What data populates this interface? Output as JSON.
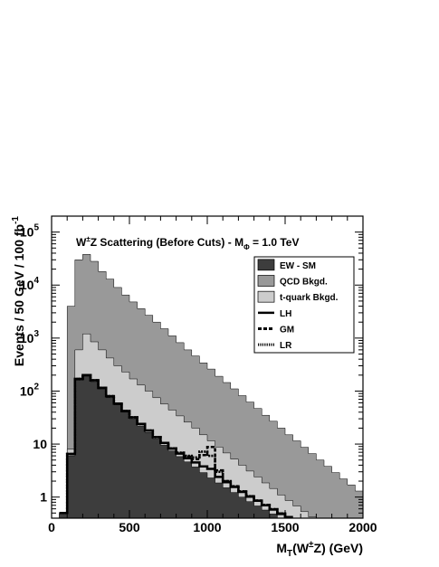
{
  "chart_data": {
    "type": "histogram",
    "title_parts": {
      "w_sup": "±",
      "before": "W",
      "after": "Z Scattering (Before Cuts) - M",
      "sub": "Φ",
      "tail": " = 1.0 TeV"
    },
    "xlabel_parts": {
      "m": "M",
      "sub": "T",
      "open": "(W",
      "sup": "±",
      "close": "Z) (GeV)"
    },
    "ylabel_text": "Events / 50 GeV / 100 fb",
    "ylabel_sup": "-1",
    "xlim": [
      0,
      2000
    ],
    "ylim": [
      0.4,
      200000
    ],
    "yscale": "log",
    "bin_width": 50,
    "x_ticks": [
      "0",
      "500",
      "1000",
      "1500",
      "2000"
    ],
    "y_ticks": [
      {
        "base": "1",
        "exp": "",
        "value": 1
      },
      {
        "base": "10",
        "exp": "",
        "value": 10
      },
      {
        "base": "10",
        "exp": "2",
        "value": 100
      },
      {
        "base": "10",
        "exp": "3",
        "value": 1000
      },
      {
        "base": "10",
        "exp": "4",
        "value": 10000
      },
      {
        "base": "10",
        "exp": "5",
        "value": 100000
      }
    ],
    "bins_x": [
      50,
      100,
      150,
      200,
      250,
      300,
      350,
      400,
      450,
      500,
      550,
      600,
      650,
      700,
      750,
      800,
      850,
      900,
      950,
      1000,
      1050,
      1100,
      1150,
      1200,
      1250,
      1300,
      1350,
      1400,
      1450,
      1500,
      1550,
      1600,
      1650,
      1700,
      1750,
      1800,
      1850,
      1900,
      1950
    ],
    "series": [
      {
        "name": "QCD Bkgd.",
        "style": "fill",
        "color": "#999999",
        "values": [
          0.5,
          4000,
          30000,
          38000,
          28000,
          18000,
          13000,
          9000,
          6500,
          4800,
          3600,
          2700,
          2000,
          1500,
          1100,
          820,
          600,
          460,
          340,
          260,
          190,
          145,
          110,
          82,
          62,
          47,
          35,
          27,
          20,
          15,
          11.5,
          8.7,
          6.6,
          5,
          3.8,
          2.9,
          2.2,
          1.7,
          1.3
        ]
      },
      {
        "name": "t-quark Bkgd.",
        "style": "fill",
        "color": "#cccccc",
        "values": [
          0.5,
          8,
          600,
          1200,
          850,
          600,
          420,
          300,
          230,
          170,
          130,
          100,
          75,
          57,
          44,
          34,
          26,
          20,
          15,
          11.5,
          8.8,
          6.8,
          5.2,
          4,
          3.1,
          2.4,
          1.85,
          1.45,
          1.1,
          0.86,
          0.68,
          0.53,
          0.42
        ]
      },
      {
        "name": "EW - SM",
        "style": "fill",
        "color": "#3d3d3d",
        "values": [
          0.5,
          6,
          160,
          190,
          150,
          110,
          75,
          55,
          40,
          30,
          22,
          16.5,
          12.5,
          9.5,
          7.4,
          5.8,
          4.6,
          3.7,
          2.9,
          2.3,
          1.85,
          1.5,
          1.22,
          1,
          0.82,
          0.68,
          0.57,
          0.48,
          0.4
        ]
      },
      {
        "name": "LH",
        "style": "solid",
        "color": "#000000",
        "values": [
          0.5,
          6.5,
          170,
          200,
          160,
          115,
          80,
          58,
          42,
          32,
          24,
          18,
          13.5,
          10.5,
          8.2,
          6.6,
          5.4,
          4.5,
          3.8,
          3.4,
          2.4,
          1.9,
          1.55,
          1.25,
          1.02,
          0.85,
          0.7,
          0.58,
          0.48,
          0.42
        ]
      },
      {
        "name": "GM",
        "style": "dashed",
        "color": "#000000",
        "values": [
          0.5,
          6.5,
          170,
          200,
          160,
          115,
          80,
          58,
          42,
          32,
          24,
          18,
          13.5,
          10.5,
          8.3,
          6.8,
          5.8,
          5.2,
          6.2,
          8.8,
          3.2,
          2.0,
          1.6,
          1.28,
          1.04,
          0.86,
          0.71,
          0.59,
          0.49,
          0.42
        ]
      },
      {
        "name": "LR",
        "style": "dotted",
        "color": "#000000",
        "values": [
          0.5,
          6.5,
          170,
          200,
          160,
          115,
          80,
          58,
          42,
          32,
          24,
          18,
          13.5,
          10.5,
          8.3,
          6.9,
          6.0,
          5.6,
          7.2,
          6.0,
          3.0,
          2.0,
          1.6,
          1.28,
          1.04,
          0.86,
          0.71,
          0.59,
          0.49,
          0.42
        ]
      }
    ],
    "legend": {
      "placement": "top-right",
      "entries": [
        {
          "label": "EW - SM",
          "kind": "fill",
          "color": "#3d3d3d"
        },
        {
          "label": "QCD Bkgd.",
          "kind": "fill",
          "color": "#999999"
        },
        {
          "label": "t-quark Bkgd.",
          "kind": "fill",
          "color": "#cccccc"
        },
        {
          "label": "LH",
          "kind": "solid"
        },
        {
          "label": "GM",
          "kind": "dashed"
        },
        {
          "label": "LR",
          "kind": "dotted"
        }
      ]
    },
    "grid": false
  }
}
